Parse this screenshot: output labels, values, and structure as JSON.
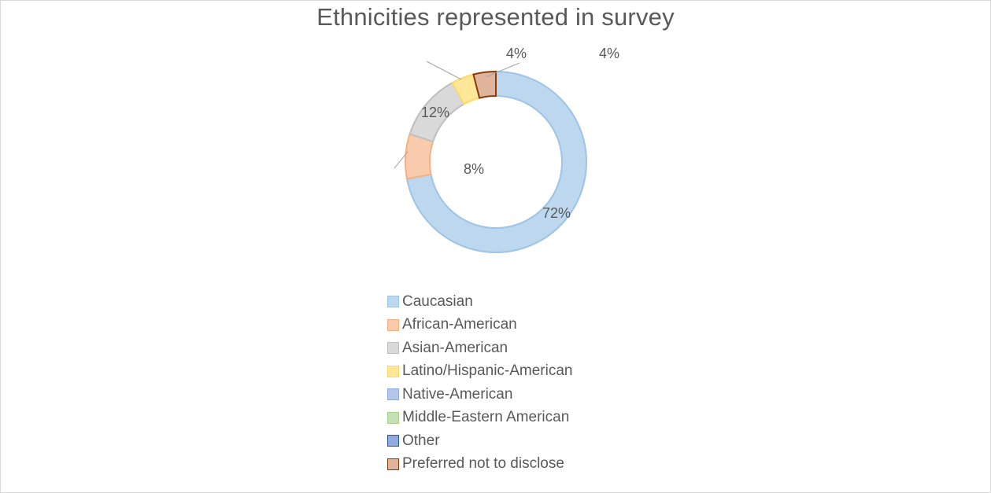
{
  "chart_data": {
    "type": "pie",
    "variant": "doughnut",
    "title": "Ethnicities represented in survey",
    "categories": [
      "Caucasian",
      "African-American",
      "Asian-American",
      "Latino/Hispanic-American",
      "Native-American",
      "Middle-Eastern American",
      "Other",
      "Preferred not to disclose"
    ],
    "values": [
      72,
      8,
      12,
      4,
      0,
      0,
      0,
      4
    ],
    "data_labels": [
      "72%",
      "8%",
      "12%",
      "4%",
      "",
      "",
      "",
      "4%"
    ],
    "colors": [
      "#bdd7ee",
      "#f8cbad",
      "#d9d9d9",
      "#ffe699",
      "#b4c7e7",
      "#c5e0b4",
      "#8faadc",
      "#e0b49a"
    ],
    "border_colors": [
      "#9dc3e6",
      "#f4b183",
      "#bfbfbf",
      "#ffd966",
      "#8faadc",
      "#a9d18e",
      "#2f5597",
      "#843c0c"
    ],
    "legend_position": "bottom",
    "start_angle_deg": 0,
    "direction": "clockwise"
  }
}
